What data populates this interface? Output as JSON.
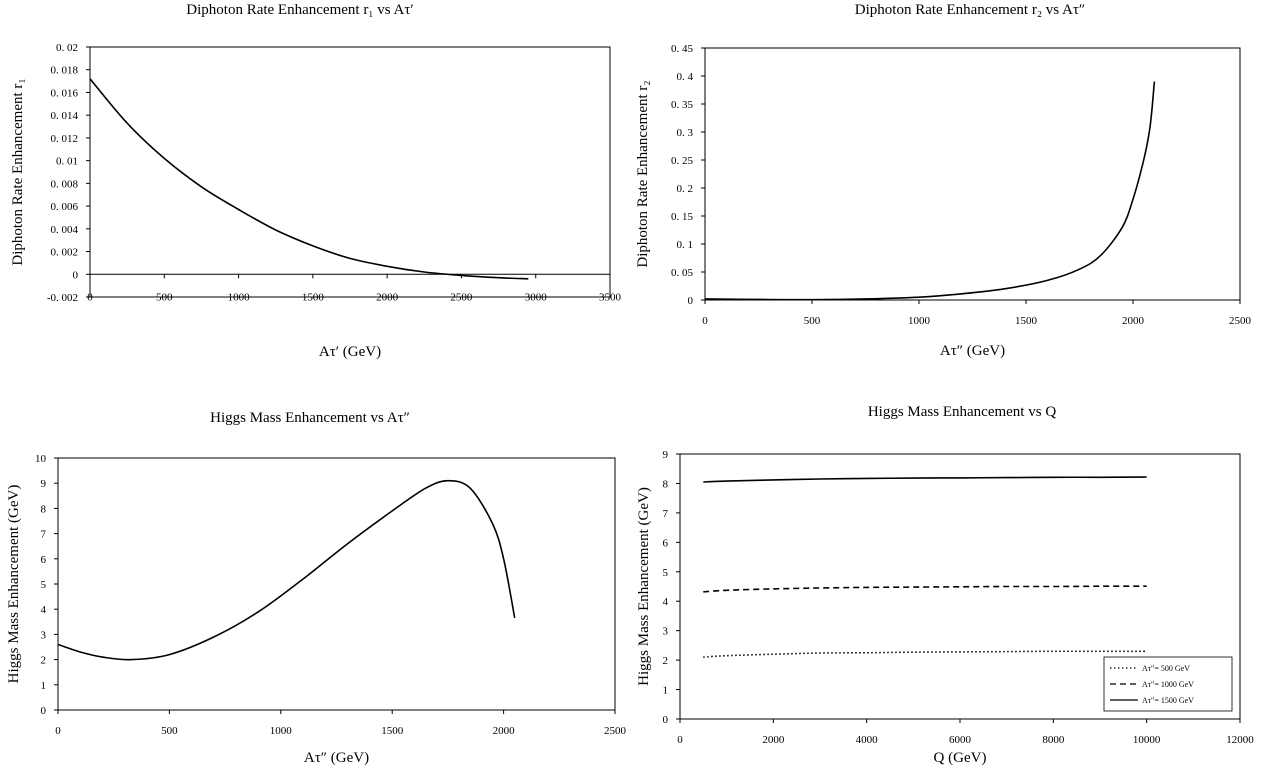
{
  "chart_data": [
    {
      "type": "line",
      "title": "Diphoton Rate Enhancement r₁ vs Aτ′",
      "xlabel": "Aτ′ (GeV)",
      "ylabel": "Diphoton Rate Enhancement  r₁",
      "xlim": [
        0,
        3500
      ],
      "ylim": [
        -0.002,
        0.02
      ],
      "xticks": [
        "0",
        "500",
        "1000",
        "1500",
        "2000",
        "2500",
        "3000",
        "3500"
      ],
      "yticks": [
        "0. 02",
        "0. 018",
        "0. 016",
        "0. 014",
        "0. 012",
        "0. 01",
        "0. 008",
        "0. 006",
        "0. 004",
        "0. 002",
        "0",
        "-0. 002"
      ],
      "grid": false,
      "zero_line": true,
      "series": [
        {
          "x": [
            0,
            250,
            500,
            750,
            1000,
            1250,
            1500,
            1750,
            2000,
            2250,
            2500,
            2750,
            2950
          ],
          "y": [
            0.0172,
            0.0133,
            0.0102,
            0.0077,
            0.0057,
            0.0039,
            0.0025,
            0.0014,
            0.0007,
            0.0002,
            -0.0001,
            -0.0003,
            -0.0004
          ]
        }
      ]
    },
    {
      "type": "line",
      "title": "Diphoton Rate Enhancement r₂ vs Aτ″",
      "xlabel": "Aτ″ (GeV)",
      "ylabel": "Diphoton Rate Enhancement  r₂",
      "xlim": [
        0,
        2500
      ],
      "ylim": [
        0,
        0.45
      ],
      "xticks": [
        "0",
        "500",
        "1000",
        "1500",
        "2000",
        "2500"
      ],
      "yticks": [
        "0. 45",
        "0. 4",
        "0. 35",
        "0. 3",
        "0. 25",
        "0. 2",
        "0. 15",
        "0. 1",
        "0. 05",
        "0"
      ],
      "grid": false,
      "series": [
        {
          "x": [
            0,
            250,
            500,
            750,
            1000,
            1200,
            1400,
            1600,
            1750,
            1850,
            1950,
            2000,
            2050,
            2080,
            2100
          ],
          "y": [
            0.002,
            0.001,
            0.0005,
            0.002,
            0.005,
            0.011,
            0.02,
            0.035,
            0.055,
            0.08,
            0.13,
            0.18,
            0.25,
            0.31,
            0.39
          ]
        }
      ]
    },
    {
      "type": "line",
      "title": "Higgs Mass Enhancement vs Aτ″",
      "xlabel": "Aτ″ (GeV)",
      "ylabel": "Higgs Mass Enhancement (GeV)",
      "xlim": [
        0,
        2500
      ],
      "ylim": [
        0,
        10
      ],
      "xticks": [
        "0",
        "500",
        "1000",
        "1500",
        "2000",
        "2500"
      ],
      "yticks": [
        "10",
        "9",
        "8",
        "7",
        "6",
        "5",
        "4",
        "3",
        "2",
        "1",
        "0"
      ],
      "grid": false,
      "series": [
        {
          "x": [
            0,
            100,
            200,
            330,
            500,
            700,
            900,
            1100,
            1300,
            1500,
            1650,
            1750,
            1850,
            1950,
            2000,
            2050
          ],
          "y": [
            2.6,
            2.3,
            2.1,
            2.0,
            2.2,
            2.9,
            3.9,
            5.2,
            6.6,
            7.9,
            8.8,
            9.1,
            8.8,
            7.4,
            6.0,
            3.65
          ]
        }
      ]
    },
    {
      "type": "line",
      "title": "Higgs Mass Enhancement vs Q",
      "xlabel": "Q (GeV)",
      "ylabel": "Higgs Mass Enhancement (GeV)",
      "xlim": [
        0,
        12000
      ],
      "ylim": [
        0,
        9
      ],
      "xticks": [
        "0",
        "2000",
        "4000",
        "6000",
        "8000",
        "10000",
        "12000"
      ],
      "yticks": [
        "9",
        "8",
        "7",
        "6",
        "5",
        "4",
        "3",
        "2",
        "1",
        "0"
      ],
      "grid": false,
      "legend": "bottom-right",
      "series": [
        {
          "name": "Aτ″= 500 GeV",
          "dash": "dotted",
          "x": [
            500,
            1000,
            2000,
            3000,
            4000,
            5000,
            6000,
            7000,
            8000,
            9000,
            10000
          ],
          "y": [
            2.1,
            2.15,
            2.2,
            2.24,
            2.25,
            2.27,
            2.28,
            2.29,
            2.3,
            2.3,
            2.3
          ]
        },
        {
          "name": "Aτ″= 1000 GeV",
          "dash": "dashed",
          "x": [
            500,
            1000,
            2000,
            3000,
            4000,
            5000,
            6000,
            7000,
            8000,
            9000,
            10000
          ],
          "y": [
            4.32,
            4.37,
            4.42,
            4.45,
            4.47,
            4.48,
            4.49,
            4.5,
            4.5,
            4.51,
            4.51
          ]
        },
        {
          "name": "Aτ″= 1500 GeV",
          "dash": "solid",
          "x": [
            500,
            1000,
            2000,
            3000,
            4000,
            5000,
            6000,
            7000,
            8000,
            9000,
            10000
          ],
          "y": [
            8.05,
            8.08,
            8.12,
            8.15,
            8.17,
            8.18,
            8.19,
            8.2,
            8.21,
            8.21,
            8.22
          ]
        }
      ]
    }
  ]
}
